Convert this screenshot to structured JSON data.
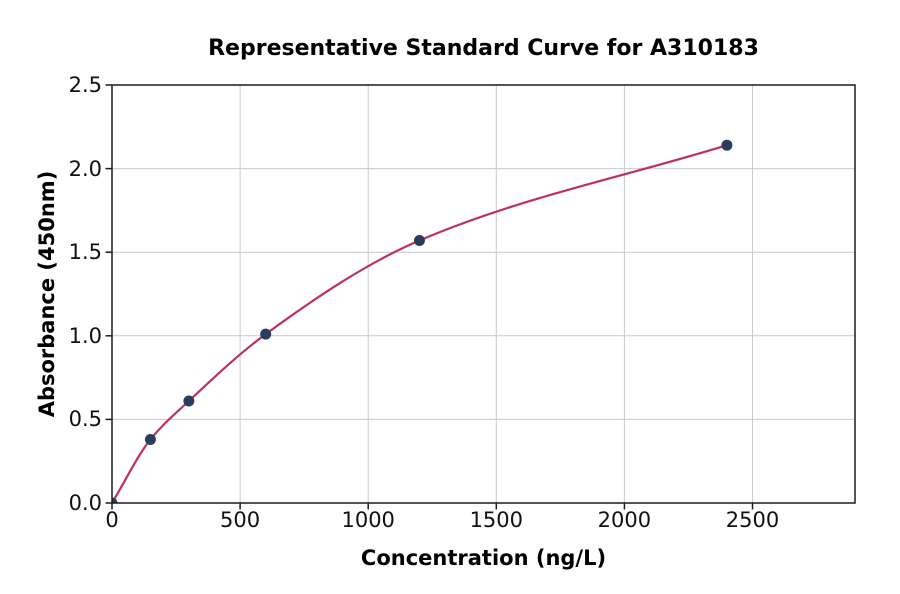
{
  "chart_data": {
    "type": "scatter",
    "title": "Representative Standard Curve for A310183",
    "xlabel": "Concentration (ng/L)",
    "ylabel": "Absorbance (450nm)",
    "xlim": [
      0,
      2900
    ],
    "ylim": [
      0,
      2.5
    ],
    "x_ticks": [
      {
        "value": 0,
        "label": "0"
      },
      {
        "value": 500,
        "label": "500"
      },
      {
        "value": 1000,
        "label": "1000"
      },
      {
        "value": 1500,
        "label": "1500"
      },
      {
        "value": 2000,
        "label": "2000"
      },
      {
        "value": 2500,
        "label": "2500"
      }
    ],
    "y_ticks": [
      {
        "value": 0.0,
        "label": "0.0"
      },
      {
        "value": 0.5,
        "label": "0.5"
      },
      {
        "value": 1.0,
        "label": "1.0"
      },
      {
        "value": 1.5,
        "label": "1.5"
      },
      {
        "value": 2.0,
        "label": "2.0"
      },
      {
        "value": 2.5,
        "label": "2.5"
      }
    ],
    "grid": true,
    "legend": null,
    "series": [
      {
        "name": "standard-points-with-fit",
        "x": [
          0,
          150,
          300,
          600,
          1200,
          2400
        ],
        "y": [
          0.0,
          0.38,
          0.61,
          1.01,
          1.57,
          2.14
        ]
      }
    ],
    "colors": {
      "curve": "#be2f63",
      "marker": "#2a3e5c",
      "grid": "#c9c9c9",
      "spine": "#1c1c1c",
      "text": "#000000",
      "background": "#ffffff"
    }
  }
}
